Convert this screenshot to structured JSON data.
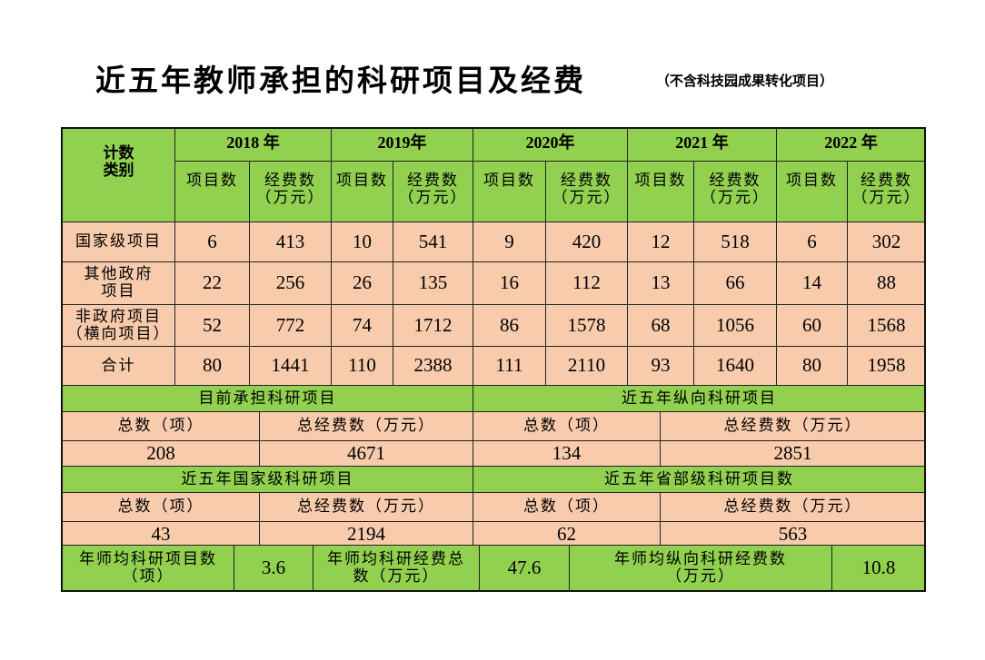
{
  "title": "近五年教师承担的科研项目及经费",
  "subtitle": "（不含科技园成果转化项目）",
  "colors": {
    "header_green": "#92d050",
    "body_peach": "#f8cbad"
  },
  "table": {
    "corner": "计数\n类别",
    "years": [
      "2018 年",
      "2019年",
      "2020年",
      "2021 年",
      "2022 年"
    ],
    "sub_headers": {
      "count": "项目数",
      "funds": "经费数\n（万元）"
    },
    "rows": [
      {
        "label": "国家级项目",
        "values": [
          "6",
          "413",
          "10",
          "541",
          "9",
          "420",
          "12",
          "518",
          "6",
          "302"
        ]
      },
      {
        "label": "其他政府\n项目",
        "values": [
          "22",
          "256",
          "26",
          "135",
          "16",
          "112",
          "13",
          "66",
          "14",
          "88"
        ]
      },
      {
        "label": "非政府项目\n（横向项目）",
        "values": [
          "52",
          "772",
          "74",
          "1712",
          "86",
          "1578",
          "68",
          "1056",
          "60",
          "1568"
        ]
      },
      {
        "label": "合计",
        "values": [
          "80",
          "1441",
          "110",
          "2388",
          "111",
          "2110",
          "93",
          "1640",
          "80",
          "1958"
        ]
      }
    ]
  },
  "summary": [
    {
      "title": "目前承担科研项目",
      "count_label": "总数（项）",
      "funds_label": "总经费数（万元）",
      "count": "208",
      "funds": "4671"
    },
    {
      "title": "近五年纵向科研项目",
      "count_label": "总数（项）",
      "funds_label": "总经费数（万元）",
      "count": "134",
      "funds": "2851"
    },
    {
      "title": "近五年国家级科研项目",
      "count_label": "总数（项）",
      "funds_label": "总经费数（万元）",
      "count": "43",
      "funds": "2194"
    },
    {
      "title": "近五年省部级科研项目数",
      "count_label": "总数（项）",
      "funds_label": "总经费数（万元）",
      "count": "62",
      "funds": "563"
    }
  ],
  "averages": [
    {
      "label": "年师均科研项目数\n（项）",
      "value": "3.6"
    },
    {
      "label": "年师均科研经费总\n数（万元）",
      "value": "47.6"
    },
    {
      "label": "年师均纵向科研经费数\n（万元）",
      "value": "10.8"
    }
  ]
}
